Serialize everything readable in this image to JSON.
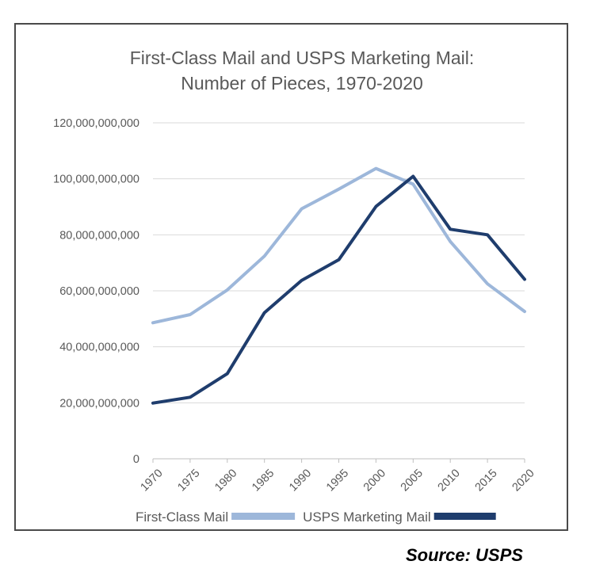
{
  "chart_data": {
    "type": "line",
    "title": "First-Class Mail and USPS Marketing Mail:",
    "subtitle": "Number of Pieces, 1970-2020",
    "x": [
      "1970",
      "1975",
      "1980",
      "1985",
      "1990",
      "1995",
      "2000",
      "2005",
      "2010",
      "2015",
      "2020"
    ],
    "ylim": [
      0,
      120000000000
    ],
    "y_ticks": [
      "0",
      "20,000,000,000",
      "40,000,000,000",
      "60,000,000,000",
      "80,000,000,000",
      "100,000,000,000",
      "120,000,000,000"
    ],
    "grid": true,
    "legend_position": "bottom",
    "series": [
      {
        "name": "First-Class Mail",
        "color": "#9db7da",
        "values": [
          48600000000,
          51500000000,
          60300000000,
          72400000000,
          89300000000,
          96300000000,
          103700000000,
          98100000000,
          77600000000,
          62500000000,
          52600000000
        ]
      },
      {
        "name": "USPS Marketing Mail",
        "color": "#1f3d6d",
        "values": [
          19900000000,
          22000000000,
          30400000000,
          52200000000,
          63700000000,
          71100000000,
          90100000000,
          100900000000,
          82000000000,
          80000000000,
          64100000000
        ]
      }
    ]
  },
  "source": "Source: USPS"
}
